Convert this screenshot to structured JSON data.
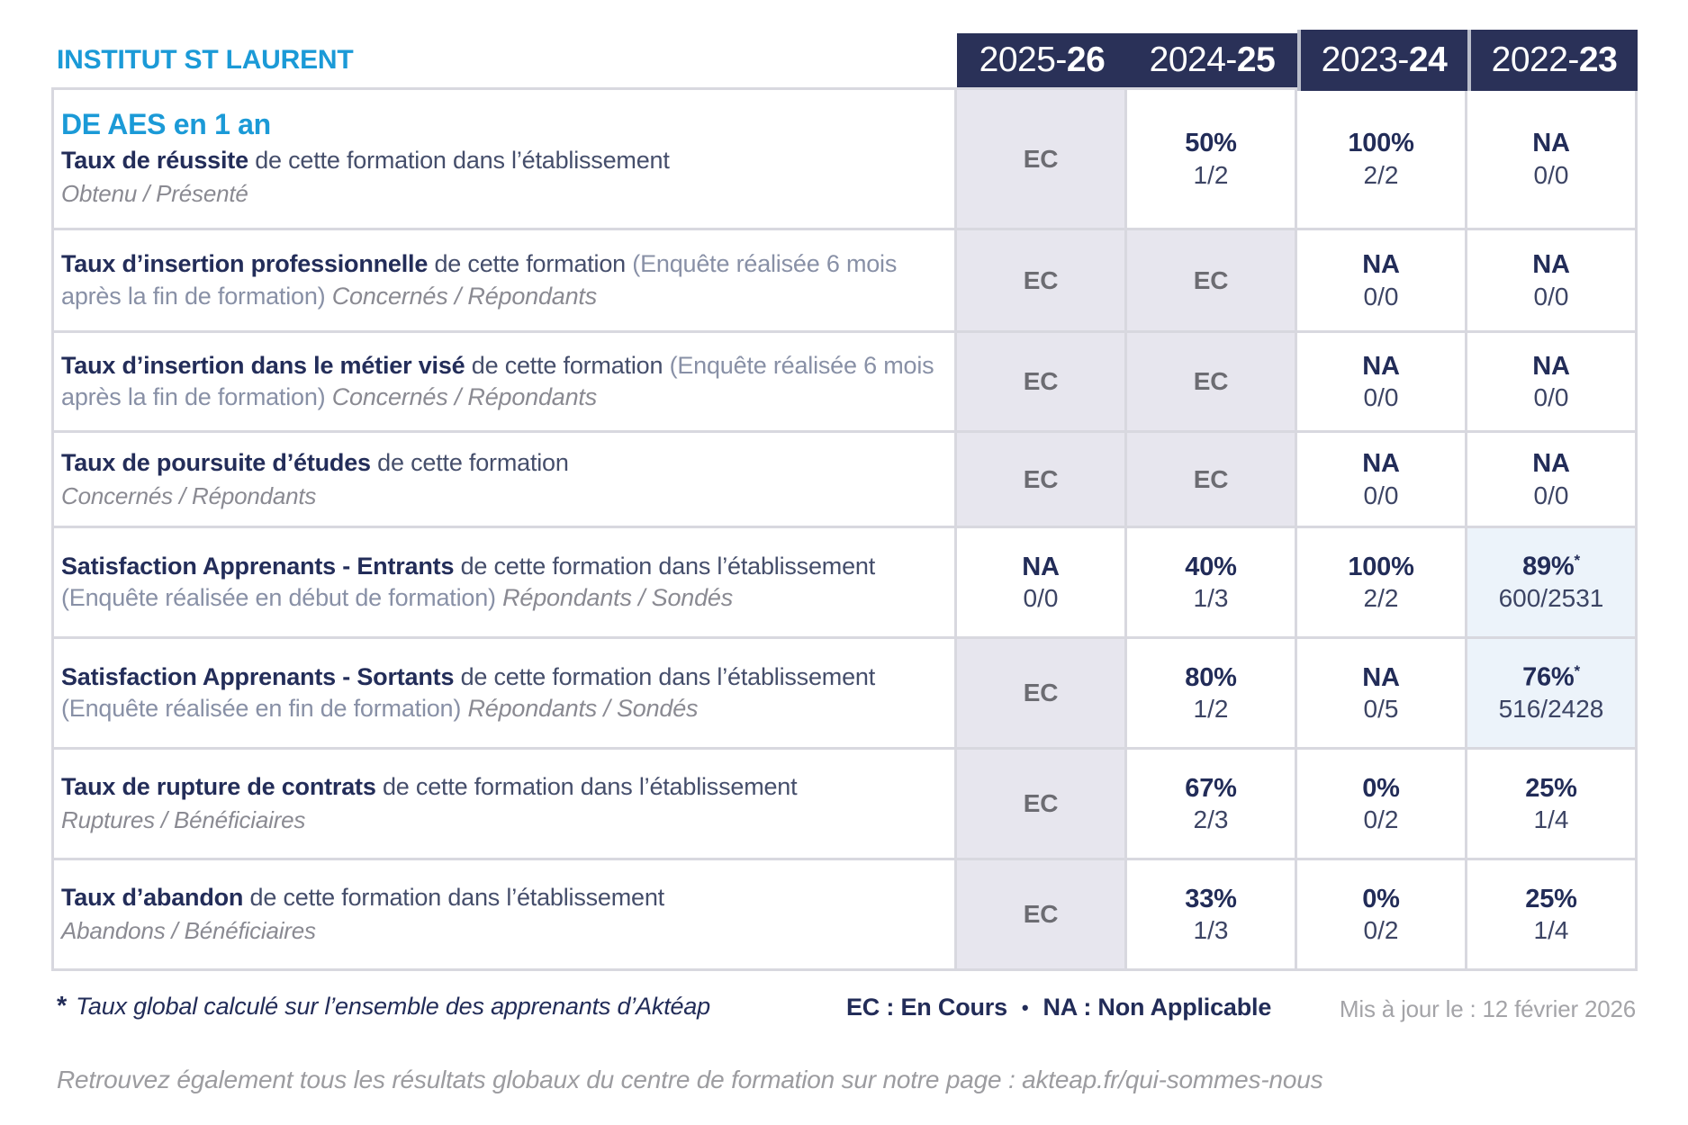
{
  "brand": "INSTITUT ST LAURENT",
  "header": {
    "years": [
      {
        "prefix": "2025-",
        "bold": "26"
      },
      {
        "prefix": "2024-",
        "bold": "25"
      },
      {
        "prefix": "2023-",
        "bold": "24"
      },
      {
        "prefix": "2022-",
        "bold": "23"
      }
    ]
  },
  "table": {
    "formation_title": "DE AES en 1 an",
    "rows": [
      {
        "title": "Taux de réussite",
        "desc": " de cette formation dans l’établissement",
        "paren": "",
        "sub_inline": "",
        "sub_block": "Obtenu / Présenté",
        "cells": [
          {
            "variant": "ec",
            "main": "EC",
            "star": "",
            "sub": ""
          },
          {
            "variant": "plain",
            "main": "50%",
            "star": "",
            "sub": "1/2"
          },
          {
            "variant": "plain",
            "main": "100%",
            "star": "",
            "sub": "2/2"
          },
          {
            "variant": "plain",
            "main": "NA",
            "star": "",
            "sub": "0/0"
          }
        ]
      },
      {
        "title": "Taux d’insertion professionnelle",
        "desc": " de cette formation ",
        "paren": "(Enquête réalisée 6 mois après la fin de formation) ",
        "sub_inline": "Concernés / Répondants",
        "sub_block": "",
        "cells": [
          {
            "variant": "ec",
            "main": "EC",
            "star": "",
            "sub": ""
          },
          {
            "variant": "ec",
            "main": "EC",
            "star": "",
            "sub": ""
          },
          {
            "variant": "plain",
            "main": "NA",
            "star": "",
            "sub": "0/0"
          },
          {
            "variant": "plain",
            "main": "NA",
            "star": "",
            "sub": "0/0"
          }
        ]
      },
      {
        "title": "Taux d’insertion dans le métier visé",
        "desc": " de cette formation ",
        "paren": "(Enquête réalisée 6 mois après la fin de formation) ",
        "sub_inline": "Concernés / Répondants",
        "sub_block": "",
        "cells": [
          {
            "variant": "ec",
            "main": "EC",
            "star": "",
            "sub": ""
          },
          {
            "variant": "ec",
            "main": "EC",
            "star": "",
            "sub": ""
          },
          {
            "variant": "plain",
            "main": "NA",
            "star": "",
            "sub": "0/0"
          },
          {
            "variant": "plain",
            "main": "NA",
            "star": "",
            "sub": "0/0"
          }
        ]
      },
      {
        "title": "Taux de poursuite d’études",
        "desc": " de cette formation",
        "paren": "",
        "sub_inline": "",
        "sub_block": "Concernés / Répondants",
        "cells": [
          {
            "variant": "ec",
            "main": "EC",
            "star": "",
            "sub": ""
          },
          {
            "variant": "ec",
            "main": "EC",
            "star": "",
            "sub": ""
          },
          {
            "variant": "plain",
            "main": "NA",
            "star": "",
            "sub": "0/0"
          },
          {
            "variant": "plain",
            "main": "NA",
            "star": "",
            "sub": "0/0"
          }
        ]
      },
      {
        "title": "Satisfaction Apprenants - Entrants",
        "desc": " de cette formation dans l’établissement ",
        "paren": "(Enquête réalisée en début de formation) ",
        "sub_inline": "Répondants / Sondés",
        "sub_block": "",
        "cells": [
          {
            "variant": "plain",
            "main": "NA",
            "star": "",
            "sub": "0/0"
          },
          {
            "variant": "plain",
            "main": "40%",
            "star": "",
            "sub": "1/3"
          },
          {
            "variant": "plain",
            "main": "100%",
            "star": "",
            "sub": "2/2"
          },
          {
            "variant": "blue",
            "main": "89%",
            "star": "*",
            "sub": "600/2531"
          }
        ]
      },
      {
        "title": "Satisfaction Apprenants - Sortants",
        "desc": " de cette formation dans l’établissement ",
        "paren": "(Enquête réalisée en fin de formation) ",
        "sub_inline": "Répondants / Sondés",
        "sub_block": "",
        "cells": [
          {
            "variant": "ec",
            "main": "EC",
            "star": "",
            "sub": ""
          },
          {
            "variant": "plain",
            "main": "80%",
            "star": "",
            "sub": "1/2"
          },
          {
            "variant": "plain",
            "main": "NA",
            "star": "",
            "sub": "0/5"
          },
          {
            "variant": "blue",
            "main": "76%",
            "star": "*",
            "sub": "516/2428"
          }
        ]
      },
      {
        "title": "Taux de rupture de contrats",
        "desc": " de cette formation dans l’établissement",
        "paren": "",
        "sub_inline": "",
        "sub_block": "Ruptures / Bénéficiaires",
        "cells": [
          {
            "variant": "ec",
            "main": "EC",
            "star": "",
            "sub": ""
          },
          {
            "variant": "plain",
            "main": "67%",
            "star": "",
            "sub": "2/3"
          },
          {
            "variant": "plain",
            "main": "0%",
            "star": "",
            "sub": "0/2"
          },
          {
            "variant": "plain",
            "main": "25%",
            "star": "",
            "sub": "1/4"
          }
        ]
      },
      {
        "title": "Taux d’abandon",
        "desc": " de cette formation dans l’établissement",
        "paren": "",
        "sub_inline": "",
        "sub_block": "Abandons / Bénéficiaires",
        "cells": [
          {
            "variant": "ec",
            "main": "EC",
            "star": "",
            "sub": ""
          },
          {
            "variant": "plain",
            "main": "33%",
            "star": "",
            "sub": "1/3"
          },
          {
            "variant": "plain",
            "main": "0%",
            "star": "",
            "sub": "0/2"
          },
          {
            "variant": "plain",
            "main": "25%",
            "star": "",
            "sub": "1/4"
          }
        ]
      }
    ]
  },
  "footnotes": {
    "star_symbol": "*",
    "star_note": "Taux global calculé sur l’ensemble des apprenants d’Aktéap",
    "legend_ec": "EC : En Cours",
    "legend_bullet": "•",
    "legend_na": "NA : Non Applicable",
    "updated": "Mis à jour le : 12 février 2026"
  },
  "footer": {
    "line": "Retrouvez également tous les résultats globaux du centre de formation sur notre page : akteap.fr/qui-sommes-nous"
  },
  "colors": {
    "brand_blue": "#1b9ad7",
    "header_navy": "#2a3158",
    "value_navy": "#222c58",
    "ec_grey_bg": "#e7e6ee",
    "star_blue_bg": "#ecf3fa",
    "border_grey": "#d8d8df"
  }
}
